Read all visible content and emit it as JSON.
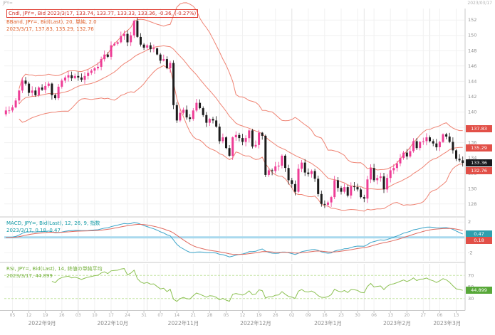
{
  "meta": {
    "top_left": "JPY=",
    "top_right": "2023/03/17"
  },
  "legend_main": {
    "line1": "Cndl, JPY=, Bid  2023/3/17, 133.74, 133.77, 133.33, 133.36, -0.36, (-0.27%)",
    "line2": "BBand, JPY=, Bid(Last), 20, 単純, 2.0",
    "line3": "2023/3/17, 137.83, 135.29, 132.76"
  },
  "legend_macd": {
    "line1": "MACD, JPY=, Bid(Last), 12, 26, 9, 指数",
    "line2": "2023/3/17, 0.18, 0.47"
  },
  "legend_rsi": {
    "line1": "RSI, JPY=, Bid(Last), 14, 終値の単純平均",
    "line2": "2023/3/17, 44.899"
  },
  "badges": {
    "bb_upper": "137.83",
    "bb_mid": "135.29",
    "price": "133.36",
    "bb_lower": "132.76",
    "macd_1": "0.47",
    "macd_2": "0.18",
    "rsi": "44.899"
  },
  "colors": {
    "candle_up": "#ee3d96",
    "candle_down": "#1c1c1c",
    "bband": "#ef8373",
    "macd_line": "#3ba4c9",
    "macd_signal": "#e06a5f",
    "macd_zero": "#a9d9ee",
    "rsi_line": "#8cc152",
    "rsi_ref": "#c2e3a0",
    "legend_candle": "#d22f27",
    "legend_bband": "#e0622d",
    "legend_macd": "#139ba6",
    "legend_rsi": "#6fae35",
    "badge_red": "#e25048",
    "badge_black": "#17181c",
    "badge_teal": "#2f9fae",
    "badge_green": "#58a839",
    "axis_text": "#8f8f8f"
  },
  "chart_data": {
    "type": "candlestick",
    "symbol": "JPY=",
    "interval": "daily",
    "start_date": "2022-09-01",
    "price_axis": {
      "min": 126.5,
      "max": 153.5,
      "tick_step": 2
    },
    "closes": [
      140.2,
      140.2,
      140.6,
      141.5,
      142.8,
      144.1,
      143.7,
      142.5,
      142.8,
      142.2,
      143.2,
      142.9,
      143.4,
      143.7,
      142.2,
      141.8,
      143.3,
      144.1,
      144.5,
      144.8,
      144.4,
      144.7,
      144.5,
      144.2,
      144.7,
      145.1,
      145.4,
      145.7,
      145.9,
      146.9,
      147.5,
      147.2,
      148.7,
      148.9,
      149.1,
      149.9,
      150.2,
      149.1,
      150.0,
      151.9,
      149.8,
      148.8,
      148.4,
      148.7,
      148.2,
      148.3,
      147.5,
      146.7,
      146.9,
      145.7,
      146.4,
      140.9,
      138.9,
      139.9,
      140.3,
      139.3,
      139.1,
      140.2,
      141.2,
      140.5,
      139.6,
      138.6,
      139.1,
      138.9,
      138.1,
      136.2,
      136.7,
      135.3,
      134.3,
      136.7,
      137.0,
      136.6,
      136.1,
      136.6,
      137.6,
      135.5,
      135.7,
      137.3,
      136.9,
      131.8,
      132.4,
      132.3,
      132.9,
      133.0,
      134.3,
      132.7,
      131.1,
      130.6,
      129.6,
      132.6,
      133.4,
      132.1,
      131.9,
      132.3,
      131.3,
      129.3,
      128.0,
      127.9,
      128.2,
      128.9,
      131.1,
      130.1,
      129.6,
      130.2,
      129.1,
      130.3,
      130.2,
      129.9,
      128.9,
      128.7,
      131.2,
      132.7,
      131.1,
      131.4,
      131.6,
      129.9,
      131.4,
      132.4,
      132.7,
      133.3,
      134.0,
      134.7,
      134.2,
      134.9,
      136.2,
      135.3,
      136.1,
      136.2,
      136.7,
      136.2,
      135.9,
      135.4,
      136.1,
      137.1,
      136.8,
      136.1,
      135.0,
      133.9,
      133.7,
      133.36
    ],
    "last_candle": {
      "date": "2023/3/17",
      "open": 133.74,
      "high": 133.77,
      "low": 133.33,
      "close": 133.36,
      "change": -0.36,
      "change_pct": "-0.27%"
    },
    "indicators": {
      "bband": {
        "period": 20,
        "deviation": 2.0,
        "ma_type": "単純",
        "last_upper": 137.83,
        "last_mid": 135.29,
        "last_lower": 132.76
      },
      "macd": {
        "fast": 12,
        "slow": 26,
        "signal": 9,
        "ma_type": "指数",
        "last_macd": 0.18,
        "last_signal": 0.47
      },
      "rsi": {
        "period": 14,
        "last": 44.899,
        "ref_lines": [
          70,
          30
        ]
      }
    },
    "x_months": [
      "2022年9月",
      "2022年10月",
      "2022年11月",
      "2022年12月",
      "2023年1月",
      "2023年2月",
      "2023年3月"
    ]
  }
}
